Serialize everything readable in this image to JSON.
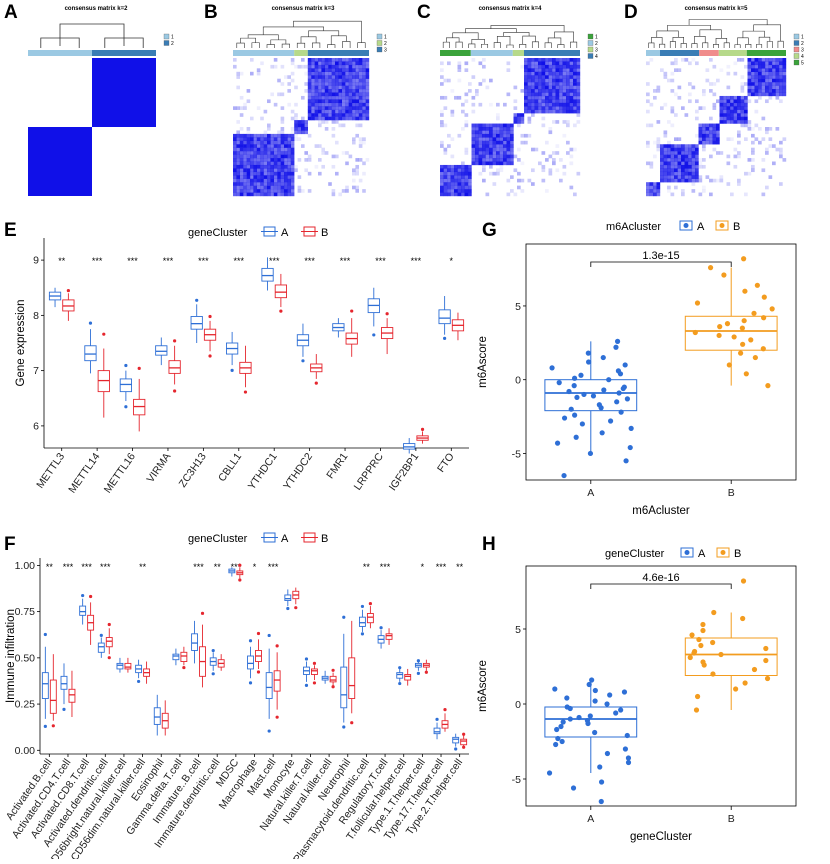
{
  "colors": {
    "groupA": "#2E6FD6",
    "groupB": "#E5262E",
    "m6A": "#2E6FD6",
    "m6B": "#F39C1F",
    "heat": "#1010E8"
  },
  "consensus": [
    {
      "letter": "A",
      "title": "consensus matrix k=2",
      "legend": [
        "1",
        "2"
      ]
    },
    {
      "letter": "B",
      "title": "consensus matrix k=3",
      "legend": [
        "1",
        "2",
        "3"
      ]
    },
    {
      "letter": "C",
      "title": "consensus matrix k=4",
      "legend": [
        "1",
        "2",
        "3",
        "4"
      ]
    },
    {
      "letter": "D",
      "title": "consensus matrix k=5",
      "legend": [
        "1",
        "2",
        "3",
        "4",
        "5"
      ]
    }
  ],
  "chart_data": [
    {
      "panel": "E",
      "type": "box",
      "legend_title": "geneCluster",
      "groups": [
        "A",
        "B"
      ],
      "ylabel": "Gene expression",
      "ylim": [
        5.6,
        9.4
      ],
      "yticks": [
        6,
        7,
        8,
        9
      ],
      "categories": [
        "METTL3",
        "METTL14",
        "METTL16",
        "VIRMA",
        "ZC3H13",
        "CBLL1",
        "YTHDC1",
        "YTHDC2",
        "FMR1",
        "LRPPRC",
        "IGF2BP1",
        "FTO"
      ],
      "significance": [
        "**",
        "***",
        "***",
        "***",
        "***",
        "***",
        "***",
        "***",
        "***",
        "***",
        "***",
        "*"
      ],
      "series": [
        {
          "name": "A",
          "stats": [
            [
              8.15,
              8.28,
              8.35,
              8.42,
              8.5
            ],
            [
              6.95,
              7.18,
              7.3,
              7.45,
              7.75
            ],
            [
              6.45,
              6.62,
              6.75,
              6.85,
              7.0
            ],
            [
              7.1,
              7.28,
              7.35,
              7.45,
              7.6
            ],
            [
              7.5,
              7.75,
              7.85,
              7.98,
              8.2
            ],
            [
              7.1,
              7.3,
              7.4,
              7.5,
              7.7
            ],
            [
              8.45,
              8.62,
              8.72,
              8.85,
              9.05
            ],
            [
              7.25,
              7.45,
              7.55,
              7.65,
              7.85
            ],
            [
              7.6,
              7.72,
              7.78,
              7.85,
              7.95
            ],
            [
              7.8,
              8.05,
              8.18,
              8.3,
              8.5
            ],
            [
              5.5,
              5.58,
              5.62,
              5.68,
              5.78
            ],
            [
              7.65,
              7.85,
              7.95,
              8.1,
              8.35
            ]
          ]
        },
        {
          "name": "B",
          "stats": [
            [
              7.9,
              8.08,
              8.17,
              8.28,
              8.4
            ],
            [
              6.15,
              6.62,
              6.82,
              7.0,
              7.4
            ],
            [
              5.9,
              6.2,
              6.35,
              6.48,
              6.85
            ],
            [
              6.75,
              6.95,
              7.05,
              7.18,
              7.45
            ],
            [
              7.35,
              7.55,
              7.65,
              7.75,
              7.9
            ],
            [
              6.7,
              6.95,
              7.05,
              7.15,
              7.45
            ],
            [
              8.15,
              8.32,
              8.42,
              8.55,
              8.75
            ],
            [
              6.85,
              6.98,
              7.05,
              7.12,
              7.3
            ],
            [
              7.25,
              7.48,
              7.58,
              7.68,
              7.95
            ],
            [
              7.3,
              7.58,
              7.68,
              7.78,
              7.95
            ],
            [
              5.68,
              5.74,
              5.78,
              5.82,
              5.9
            ],
            [
              7.55,
              7.72,
              7.82,
              7.92,
              8.05
            ]
          ]
        }
      ]
    },
    {
      "panel": "F",
      "type": "box",
      "legend_title": "geneCluster",
      "groups": [
        "A",
        "B"
      ],
      "ylabel": "Immune infiltration",
      "ylim": [
        -0.02,
        1.04
      ],
      "yticks": [
        0.0,
        0.25,
        0.5,
        0.75,
        1.0
      ],
      "ytick_labels": [
        "0.00",
        "0.25",
        "0.50",
        "0.75",
        "1.00"
      ],
      "categories": [
        "Activated.B.cell",
        "Activated.CD4.T.cell",
        "Activated.CD8.T.cell",
        "Activated.dendritic.cell",
        "CD56bright.natural.killer.cell",
        "CD56dim.natural.killer.cell",
        "Eosinophil",
        "Gamma.delta.T.cell",
        "Immature..B.cell",
        "Immature.dendritic.cell",
        "MDSC",
        "Macrophage",
        "Mast.cell",
        "Monocyte",
        "Natural.killer.T.cell",
        "Natural.killer.cell",
        "Neutrophil",
        "Plasmacytoid.dendritic.cell",
        "Regulatory.T.cell",
        "T.follicular.helper.cell",
        "Type.1.T.helper.cell",
        "Type.17.T.helper.cell",
        "Type.2.T.helper.cell"
      ],
      "significance": [
        "**",
        "***",
        "***",
        "***",
        "",
        "**",
        "",
        "",
        "***",
        "**",
        "***",
        "*",
        "***",
        "",
        "",
        "",
        "",
        "**",
        "***",
        "",
        "*",
        "***",
        "**"
      ],
      "series": [
        {
          "name": "A",
          "stats": [
            [
              0.17,
              0.28,
              0.36,
              0.42,
              0.56
            ],
            [
              0.25,
              0.33,
              0.36,
              0.4,
              0.47
            ],
            [
              0.68,
              0.73,
              0.75,
              0.78,
              0.82
            ],
            [
              0.5,
              0.53,
              0.56,
              0.58,
              0.61
            ],
            [
              0.42,
              0.44,
              0.46,
              0.47,
              0.5
            ],
            [
              0.39,
              0.42,
              0.44,
              0.46,
              0.49
            ],
            [
              0.08,
              0.14,
              0.18,
              0.23,
              0.3
            ],
            [
              0.46,
              0.49,
              0.51,
              0.52,
              0.55
            ],
            [
              0.47,
              0.54,
              0.58,
              0.63,
              0.7
            ],
            [
              0.43,
              0.46,
              0.48,
              0.5,
              0.53
            ],
            [
              0.94,
              0.96,
              0.97,
              0.98,
              0.99
            ],
            [
              0.39,
              0.44,
              0.47,
              0.51,
              0.56
            ],
            [
              0.17,
              0.28,
              0.34,
              0.42,
              0.55
            ],
            [
              0.78,
              0.81,
              0.82,
              0.84,
              0.87
            ],
            [
              0.37,
              0.41,
              0.43,
              0.45,
              0.48
            ],
            [
              0.36,
              0.38,
              0.39,
              0.4,
              0.43
            ],
            [
              0.15,
              0.23,
              0.3,
              0.45,
              0.63
            ],
            [
              0.64,
              0.67,
              0.69,
              0.72,
              0.76
            ],
            [
              0.55,
              0.58,
              0.6,
              0.62,
              0.65
            ],
            [
              0.37,
              0.39,
              0.41,
              0.42,
              0.44
            ],
            [
              0.43,
              0.45,
              0.46,
              0.47,
              0.48
            ],
            [
              0.06,
              0.09,
              0.1,
              0.12,
              0.15
            ],
            [
              0.02,
              0.04,
              0.06,
              0.07,
              0.09
            ]
          ]
        },
        {
          "name": "B",
          "stats": [
            [
              0.16,
              0.2,
              0.27,
              0.38,
              0.52
            ],
            [
              0.18,
              0.26,
              0.3,
              0.33,
              0.43
            ],
            [
              0.57,
              0.65,
              0.69,
              0.73,
              0.8
            ],
            [
              0.52,
              0.56,
              0.59,
              0.61,
              0.66
            ],
            [
              0.42,
              0.44,
              0.45,
              0.47,
              0.5
            ],
            [
              0.36,
              0.4,
              0.42,
              0.44,
              0.48
            ],
            [
              0.08,
              0.12,
              0.16,
              0.2,
              0.27
            ],
            [
              0.46,
              0.48,
              0.51,
              0.53,
              0.56
            ],
            [
              0.34,
              0.4,
              0.48,
              0.56,
              0.68
            ],
            [
              0.43,
              0.45,
              0.47,
              0.49,
              0.52
            ],
            [
              0.93,
              0.95,
              0.96,
              0.97,
              0.99
            ],
            [
              0.44,
              0.48,
              0.51,
              0.54,
              0.6
            ],
            [
              0.22,
              0.32,
              0.38,
              0.43,
              0.53
            ],
            [
              0.79,
              0.82,
              0.84,
              0.86,
              0.88
            ],
            [
              0.38,
              0.41,
              0.43,
              0.44,
              0.46
            ],
            [
              0.35,
              0.37,
              0.38,
              0.4,
              0.42
            ],
            [
              0.2,
              0.28,
              0.35,
              0.5,
              0.7
            ],
            [
              0.66,
              0.69,
              0.72,
              0.74,
              0.78
            ],
            [
              0.57,
              0.6,
              0.62,
              0.63,
              0.66
            ],
            [
              0.35,
              0.38,
              0.4,
              0.41,
              0.44
            ],
            [
              0.43,
              0.45,
              0.46,
              0.47,
              0.49
            ],
            [
              0.1,
              0.12,
              0.14,
              0.16,
              0.2
            ],
            [
              0.02,
              0.03,
              0.05,
              0.06,
              0.08
            ]
          ]
        }
      ]
    },
    {
      "panel": "G",
      "type": "box_scatter",
      "legend_title": "m6Acluster",
      "groups": [
        "A",
        "B"
      ],
      "xlabel": "m6Acluster",
      "ylabel": "m6Ascore",
      "ylim": [
        -6.8,
        9.2
      ],
      "yticks": [
        -5,
        0,
        5
      ],
      "pvalue": "1.3e-15",
      "box_stats": [
        [
          -5.0,
          -2.1,
          -0.9,
          0.0,
          2.6
        ],
        [
          -0.4,
          2.0,
          3.3,
          4.3,
          7.6
        ]
      ],
      "points_A": [
        2.6,
        2.2,
        1.8,
        1.5,
        1.2,
        1.0,
        0.8,
        0.6,
        0.4,
        0.3,
        0.1,
        0.0,
        -0.2,
        -0.4,
        -0.5,
        -0.7,
        -0.8,
        -0.9,
        -1.0,
        -1.1,
        -1.3,
        -1.5,
        -1.7,
        -1.9,
        -2.0,
        -2.2,
        -2.4,
        -2.6,
        -2.8,
        -3.0,
        -3.3,
        -3.6,
        -3.9,
        -4.3,
        -4.6,
        -5.0,
        -5.5,
        -6.5,
        -1.2,
        -0.6
      ],
      "points_B": [
        8.2,
        7.6,
        7.1,
        6.4,
        6.0,
        5.6,
        5.2,
        4.8,
        4.5,
        4.2,
        4.0,
        3.8,
        3.5,
        3.2,
        3.0,
        2.7,
        2.4,
        2.1,
        1.8,
        1.5,
        1.0,
        0.4,
        -0.4,
        2.9,
        3.6
      ]
    },
    {
      "panel": "H",
      "type": "box_scatter",
      "legend_title": "geneCluster",
      "groups": [
        "A",
        "B"
      ],
      "xlabel": "geneCluster",
      "ylabel": "m6Ascore",
      "ylim": [
        -6.8,
        9.2
      ],
      "yticks": [
        -5,
        0,
        5
      ],
      "pvalue": "4.6e-16",
      "box_stats": [
        [
          -4.6,
          -2.2,
          -1.0,
          -0.2,
          1.6
        ],
        [
          -0.4,
          1.9,
          3.3,
          4.4,
          6.1
        ]
      ],
      "points_A": [
        1.6,
        1.3,
        1.0,
        0.8,
        0.6,
        0.4,
        0.2,
        0.0,
        -0.2,
        -0.4,
        -0.6,
        -0.8,
        -1.0,
        -1.1,
        -1.3,
        -1.5,
        -1.7,
        -1.9,
        -2.1,
        -2.3,
        -2.5,
        -2.7,
        -3.0,
        -3.3,
        -3.6,
        -3.9,
        -4.2,
        -4.6,
        -5.2,
        -5.6,
        -6.5,
        -0.9,
        -1.2,
        -0.3,
        0.9
      ],
      "points_B": [
        8.2,
        6.1,
        5.7,
        5.3,
        4.9,
        4.6,
        4.3,
        4.1,
        3.9,
        3.7,
        3.5,
        3.3,
        3.1,
        2.9,
        2.6,
        2.3,
        2.0,
        1.7,
        1.4,
        1.0,
        0.5,
        -0.4,
        2.8,
        3.4
      ]
    }
  ]
}
